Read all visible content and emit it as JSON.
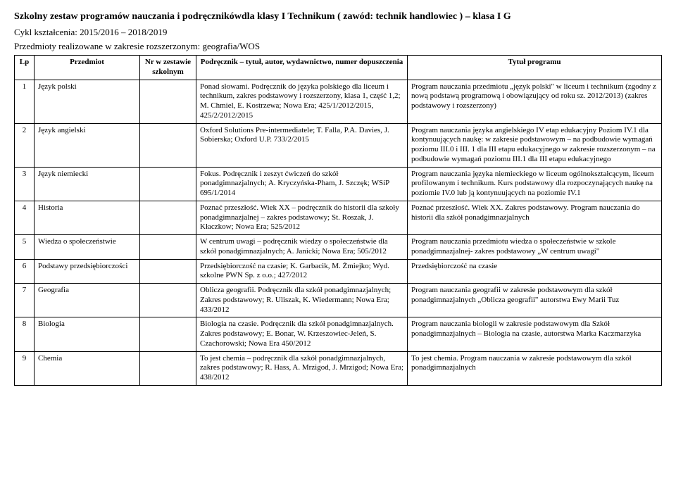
{
  "header": {
    "title": "Szkolny zestaw programów nauczania i podręcznikówdla klasy I Technikum ( zawód: technik handlowiec ) – klasa I G",
    "cycle": "Cykl kształcenia: 2015/2016 – 2018/2019",
    "scope": "Przedmioty realizowane w zakresie rozszerzonym: geografia/WOS"
  },
  "columns": {
    "lp": "Lp",
    "subject": "Przedmiot",
    "nr": "Nr w zestawie szkolnym",
    "book": "Podręcznik – tytuł, autor, wydawnictwo, numer dopuszczenia",
    "program": "Tytuł programu"
  },
  "rows": [
    {
      "lp": "1",
      "subject": "Język polski",
      "nr": "",
      "book": "Ponad słowami. Podręcznik do języka polskiego dla liceum i technikum, zakres podstawowy i rozszerzony, klasa 1, część 1,2; M. Chmiel, E. Kostrzewa; Nowa Era; 425/1/2012/2015, 425/2/2012/2015",
      "program": "Program nauczania przedmiotu „język polski\" w liceum i technikum (zgodny z nową podstawą programową i obowiązujący od roku sz. 2012/2013) (zakres podstawowy i rozszerzony)"
    },
    {
      "lp": "2",
      "subject": "Język angielski",
      "nr": "",
      "book": "Oxford Solutions Pre-intermediatele; T. Falla, P.A. Davies, J. Sobierska; Oxford U.P. 733/2/2015",
      "program": "Program nauczania języka angielskiego IV etap edukacyjny Poziom IV.1 dla kontynuujących naukę: w zakresie podstawowym – na podbudowie wymagań poziomu III.0 i III. 1 dla III etapu edukacyjnego w zakresie rozszerzonym – na podbudowie wymagań poziomu III.1 dla III etapu edukacyjnego"
    },
    {
      "lp": "3",
      "subject": "Język niemiecki",
      "nr": "",
      "book": "Fokus. Podręcznik i zeszyt ćwiczeń do szkół ponadgimnazjalnych; A. Kryczyńska-Pham, J. Szczęk; WSiP 695/1/2014",
      "program": "Program nauczania języka niemieckiego w liceum ogólnokształcącym, liceum profilowanym i technikum. Kurs podstawowy dla rozpoczynających naukę na poziomie IV.0 lub ją kontynuujących na poziomie IV.1"
    },
    {
      "lp": "4",
      "subject": "Historia",
      "nr": "",
      "book": "Poznać przeszłość. Wiek XX – podręcznik do historii dla szkoły ponadgimnazjalnej – zakres podstawowy; St. Roszak, J. Kłaczkow; Nowa Era; 525/2012",
      "program": "Poznać przeszłość. Wiek XX. Zakres podstawowy. Program nauczania do historii dla szkół ponadgimnazjalnych"
    },
    {
      "lp": "5",
      "subject": "Wiedza o społeczeństwie",
      "nr": "",
      "book": "W centrum uwagi – podręcznik wiedzy o społeczeństwie dla szkół ponadgimnazjalnych; A. Janicki; Nowa Era; 505/2012",
      "program": "Program nauczania przedmiotu wiedza o społeczeństwie w szkole ponadgimnazjalnej- zakres podstawowy „W centrum uwagi\""
    },
    {
      "lp": "6",
      "subject": "Podstawy przedsiębiorczości",
      "nr": "",
      "book": "Przedsiębiorczość na czasie; K. Garbacik, M. Żmiejko; Wyd. szkolne PWN Sp. z o.o.; 427/2012",
      "program": "Przedsiębiorczość na czasie"
    },
    {
      "lp": "7",
      "subject": "Geografia",
      "nr": "",
      "book": "Oblicza geografii. Podręcznik dla szkół ponadgimnazjalnych; Zakres podstawowy; R. Uliszak, K. Wiedermann; Nowa Era; 433/2012",
      "program": "Program nauczania geografii w zakresie podstawowym dla szkół ponadgimnazjalnych „Oblicza geografii\" autorstwa Ewy Marii Tuz"
    },
    {
      "lp": "8",
      "subject": "Biologia",
      "nr": "",
      "book": "Biologia na czasie. Podręcznik dla szkół ponadgimnazjalnych. Zakres podstawowy; E. Bonar, W. Krzeszowiec-Jeleń, S. Czachorowski; Nowa Era 450/2012",
      "program": "Program nauczania biologii w zakresie podstawowym dla Szkół  ponadgimnazjalnych – Biologia na czasie, autorstwa Marka Kaczmarzyka"
    },
    {
      "lp": "9",
      "subject": "Chemia",
      "nr": "",
      "book": "To jest chemia – podręcznik dla szkół ponadgimnazjalnych, zakres podstawowy; R. Hass, A. Mrzigod, J. Mrzigod; Nowa Era; 438/2012",
      "program": "To jest chemia. Program nauczania w zakresie podstawowym dla szkół ponadgimnazjalnych"
    }
  ]
}
